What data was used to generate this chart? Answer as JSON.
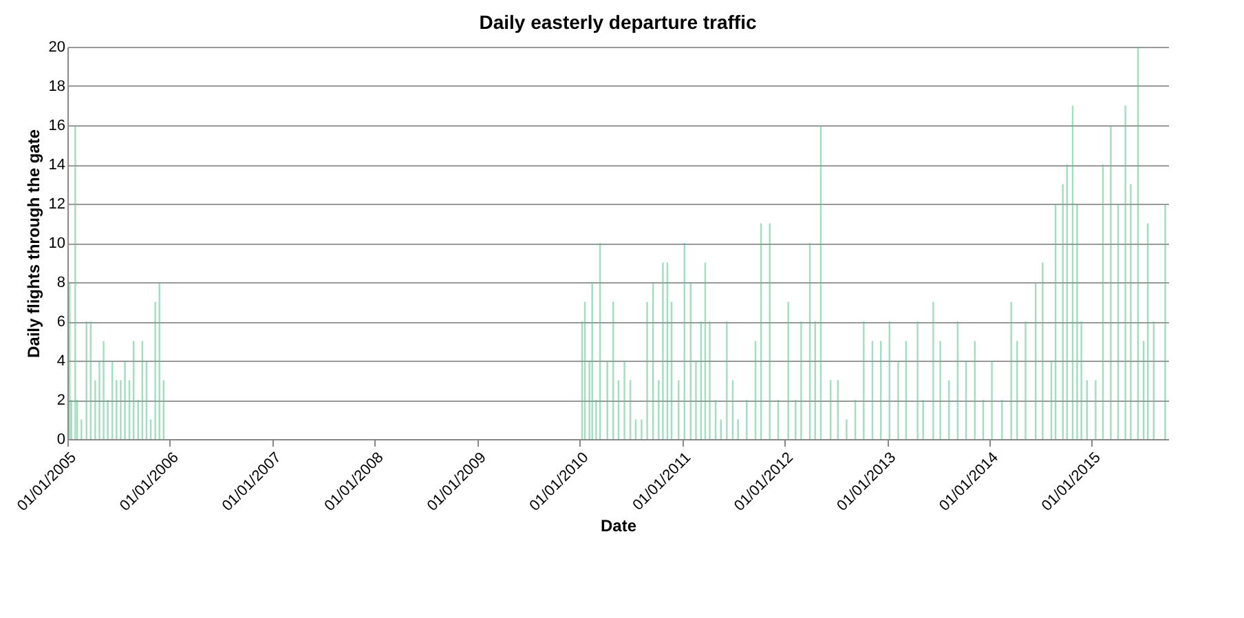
{
  "chart_data": {
    "type": "bar",
    "title": "Daily easterly departure traffic",
    "xlabel": "Date",
    "ylabel": "Daily flights through the gate",
    "x": [
      "2005-01-09",
      "2005-01-15",
      "2005-01-29",
      "2005-02-05",
      "2005-02-20",
      "2005-03-10",
      "2005-03-25",
      "2005-04-10",
      "2005-04-25",
      "2005-05-10",
      "2005-05-25",
      "2005-06-10",
      "2005-06-25",
      "2005-07-10",
      "2005-07-25",
      "2005-08-10",
      "2005-08-25",
      "2005-09-10",
      "2005-09-25",
      "2005-10-10",
      "2005-10-25",
      "2005-11-10",
      "2005-11-25",
      "2005-12-10",
      "2010-01-10",
      "2010-01-20",
      "2010-02-05",
      "2010-02-15",
      "2010-03-01",
      "2010-03-15",
      "2010-04-10",
      "2010-05-01",
      "2010-05-20",
      "2010-06-10",
      "2010-07-01",
      "2010-07-20",
      "2010-08-10",
      "2010-08-30",
      "2010-09-20",
      "2010-10-10",
      "2010-10-25",
      "2010-11-10",
      "2010-11-25",
      "2010-12-20",
      "2011-01-10",
      "2011-02-01",
      "2011-02-20",
      "2011-03-10",
      "2011-03-25",
      "2011-04-10",
      "2011-05-01",
      "2011-05-20",
      "2011-06-10",
      "2011-07-01",
      "2011-07-20",
      "2011-08-20",
      "2011-09-20",
      "2011-10-10",
      "2011-11-10",
      "2011-12-10",
      "2012-01-15",
      "2012-02-10",
      "2012-03-01",
      "2012-04-01",
      "2012-04-20",
      "2012-05-10",
      "2012-06-14",
      "2012-07-10",
      "2012-08-10",
      "2012-09-10",
      "2012-10-10",
      "2012-11-10",
      "2012-12-10",
      "2013-01-10",
      "2013-02-10",
      "2013-03-10",
      "2013-04-20",
      "2013-05-10",
      "2013-06-15",
      "2013-07-10",
      "2013-08-10",
      "2013-09-10",
      "2013-10-10",
      "2013-11-10",
      "2013-12-10",
      "2014-01-10",
      "2014-02-15",
      "2014-03-20",
      "2014-04-10",
      "2014-05-10",
      "2014-06-15",
      "2014-07-10",
      "2014-08-10",
      "2014-08-25",
      "2014-09-20",
      "2014-10-05",
      "2014-10-25",
      "2014-11-10",
      "2014-11-25",
      "2014-12-15",
      "2015-01-15",
      "2015-02-10",
      "2015-03-10",
      "2015-04-05",
      "2015-05-01",
      "2015-05-20",
      "2015-06-15",
      "2015-07-05",
      "2015-07-20",
      "2015-08-10",
      "2015-09-20"
    ],
    "values": [
      8,
      2,
      16,
      2,
      1,
      6,
      6,
      3,
      4,
      5,
      2,
      4,
      3,
      3,
      4,
      3,
      5,
      2,
      5,
      4,
      1,
      7,
      8,
      3,
      6,
      7,
      4,
      8,
      2,
      10,
      4,
      7,
      3,
      4,
      3,
      1,
      1,
      7,
      8,
      3,
      9,
      9,
      7,
      3,
      10,
      8,
      4,
      6,
      9,
      6,
      2,
      1,
      6,
      3,
      1,
      2,
      5,
      11,
      11,
      2,
      7,
      2,
      6,
      10,
      6,
      16,
      3,
      3,
      1,
      2,
      6,
      5,
      5,
      6,
      4,
      5,
      6,
      2,
      7,
      5,
      3,
      6,
      4,
      5,
      2,
      4,
      2,
      7,
      5,
      6,
      8,
      9,
      4,
      12,
      13,
      14,
      17,
      12,
      6,
      3,
      3,
      14,
      16,
      12,
      17,
      13,
      20,
      5,
      11,
      6,
      12
    ],
    "color": "#52c28a",
    "xlim": [
      "2005-01-01",
      "2015-10-01"
    ],
    "xticks": [
      {
        "value": "2005-01-01",
        "label": "01/01/2005"
      },
      {
        "value": "2006-01-01",
        "label": "01/01/2006"
      },
      {
        "value": "2007-01-01",
        "label": "01/01/2007"
      },
      {
        "value": "2008-01-01",
        "label": "01/01/2008"
      },
      {
        "value": "2009-01-01",
        "label": "01/01/2009"
      },
      {
        "value": "2010-01-01",
        "label": "01/01/2010"
      },
      {
        "value": "2011-01-01",
        "label": "01/01/2011"
      },
      {
        "value": "2012-01-01",
        "label": "01/01/2012"
      },
      {
        "value": "2013-01-01",
        "label": "01/01/2013"
      },
      {
        "value": "2014-01-01",
        "label": "01/01/2014"
      },
      {
        "value": "2015-01-01",
        "label": "01/01/2015"
      }
    ],
    "ylim": [
      0,
      20
    ],
    "yticks": [
      0,
      2,
      4,
      6,
      8,
      10,
      12,
      14,
      16,
      18,
      20
    ],
    "grid": "y"
  }
}
